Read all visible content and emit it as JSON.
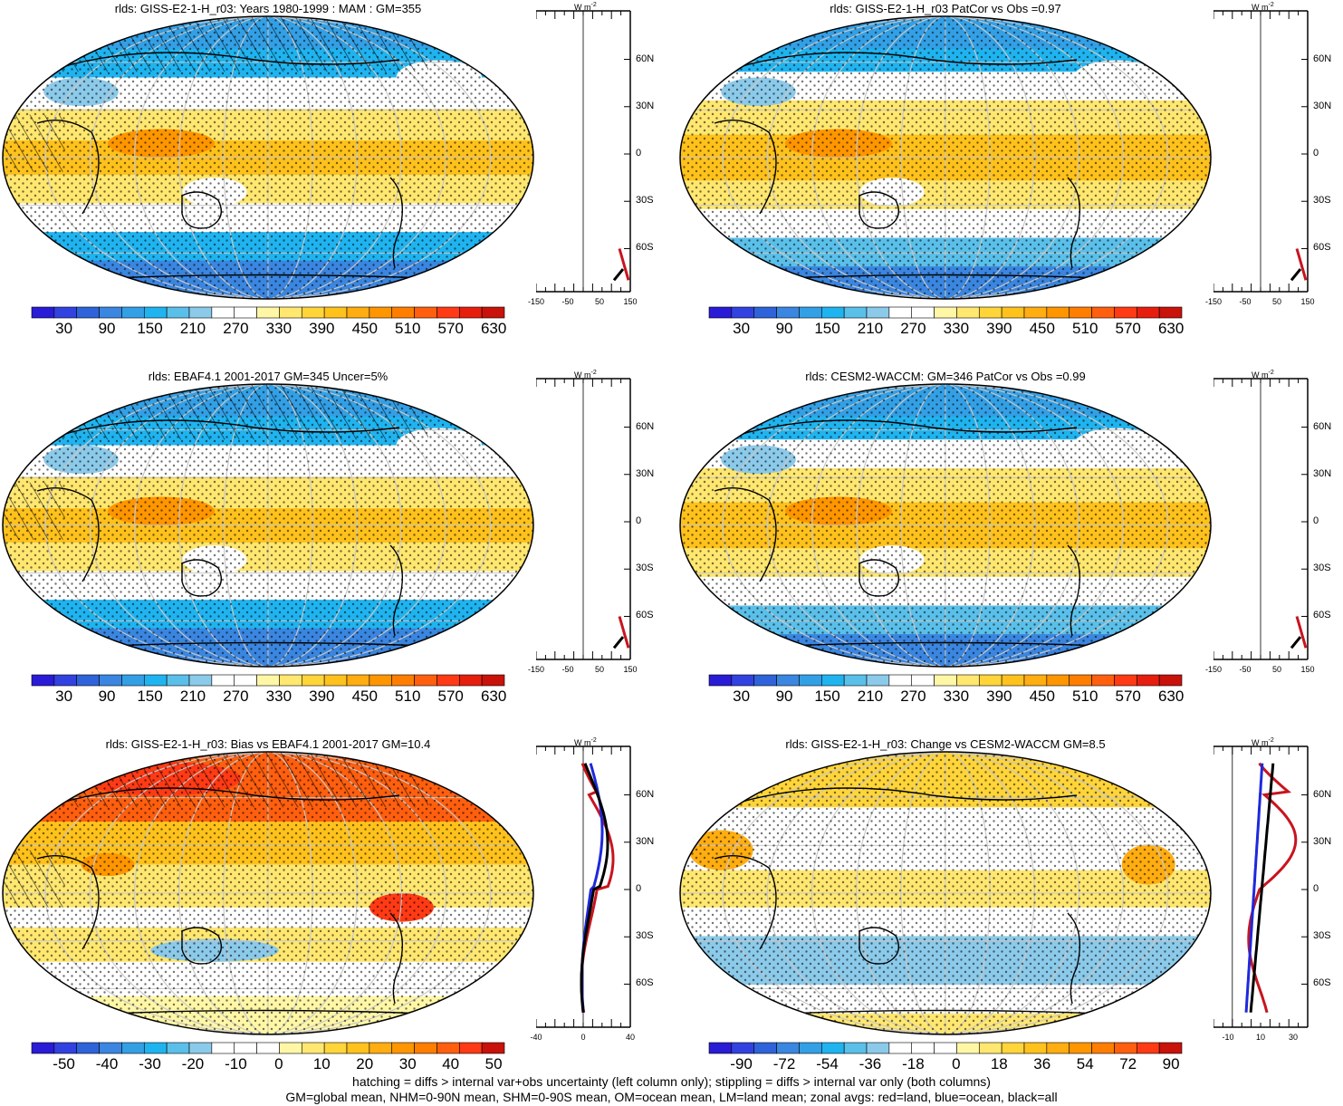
{
  "panels": [
    {
      "title": "rlds: GISS-E2-1-H_r03: Years 1980-1999 : MAM : GM=355",
      "palette": "abs",
      "colorbar_labels": [
        "30",
        "90",
        "150",
        "210",
        "270",
        "330",
        "390",
        "450",
        "510",
        "570",
        "630"
      ],
      "zonal_xticks": [
        "-150",
        "-50",
        "50",
        "150"
      ],
      "zonal_lines": "abs",
      "hatch": true
    },
    {
      "title": "rlds: GISS-E2-1-H_r03 PatCor vs Obs =0.97",
      "palette": "abs",
      "colorbar_labels": [
        "30",
        "90",
        "150",
        "210",
        "270",
        "330",
        "390",
        "450",
        "510",
        "570",
        "630"
      ],
      "zonal_xticks": [
        "-150",
        "-50",
        "50",
        "150"
      ],
      "zonal_lines": "abs",
      "hatch": false
    },
    {
      "title": "rlds: EBAF4.1 2001-2017 GM=345 Uncer=5%",
      "palette": "abs",
      "colorbar_labels": [
        "30",
        "90",
        "150",
        "210",
        "270",
        "330",
        "390",
        "450",
        "510",
        "570",
        "630"
      ],
      "zonal_xticks": [
        "-150",
        "-50",
        "50",
        "150"
      ],
      "zonal_lines": "abs",
      "hatch": true
    },
    {
      "title": "rlds: CESM2-WACCM: GM=346 PatCor vs Obs =0.99",
      "palette": "abs",
      "colorbar_labels": [
        "30",
        "90",
        "150",
        "210",
        "270",
        "330",
        "390",
        "450",
        "510",
        "570",
        "630"
      ],
      "zonal_xticks": [
        "-150",
        "-50",
        "50",
        "150"
      ],
      "zonal_lines": "abs",
      "hatch": false
    },
    {
      "title": "rlds: GISS-E2-1-H_r03: Bias vs EBAF4.1 2001-2017 GM=10.4",
      "palette": "diff",
      "colorbar_labels": [
        "-50",
        "-40",
        "-30",
        "-20",
        "-10",
        "0",
        "10",
        "20",
        "30",
        "40",
        "50"
      ],
      "zonal_xticks": [
        "-40",
        "0",
        "40"
      ],
      "zonal_lines": "bias",
      "hatch": true
    },
    {
      "title": "rlds: GISS-E2-1-H_r03: Change vs CESM2-WACCM GM=8.5",
      "palette": "diff",
      "colorbar_labels": [
        "-90",
        "-72",
        "-54",
        "-36",
        "-18",
        "0",
        "18",
        "36",
        "54",
        "72",
        "90"
      ],
      "zonal_xticks": [
        "-10",
        "10",
        "30"
      ],
      "zonal_lines": "change",
      "hatch": false
    }
  ],
  "zonal_ylabels": [
    "60N",
    "30N",
    "0",
    "30S",
    "60S"
  ],
  "zonal_unit": "W m",
  "zonal_unit_sup": "-2",
  "colors": {
    "palette_abs": [
      "#2a1bd6",
      "#3242e0",
      "#2f63d9",
      "#3a86e0",
      "#33a0e6",
      "#1fb4f0",
      "#5ac0ea",
      "#8ccaea",
      "#ffffff",
      "#ffffff",
      "#fff7a6",
      "#ffe770",
      "#ffd53a",
      "#ffc21c",
      "#ffad10",
      "#ff9600",
      "#ff7e00",
      "#ff5f0e",
      "#ff3a14",
      "#e61e0e",
      "#c8120a"
    ],
    "land_line": "#c8141e",
    "ocean_line": "#1e28dc",
    "all_line": "#000000"
  },
  "chart_data": [
    {
      "type": "heatmap",
      "title": "rlds: GISS-E2-1-H_r03: Years 1980-1999 : MAM : GM=355",
      "colorbar": [
        30,
        630
      ]
    },
    {
      "type": "heatmap",
      "title": "rlds: GISS-E2-1-H_r03 PatCor vs Obs =0.97",
      "colorbar": [
        30,
        630
      ]
    },
    {
      "type": "heatmap",
      "title": "rlds: EBAF4.1 2001-2017 GM=345 Uncer=5%",
      "colorbar": [
        30,
        630
      ]
    },
    {
      "type": "heatmap",
      "title": "rlds: CESM2-WACCM: GM=346 PatCor vs Obs =0.99",
      "colorbar": [
        30,
        630
      ]
    },
    {
      "type": "heatmap",
      "title": "rlds: GISS-E2-1-H_r03: Bias vs EBAF4.1 2001-2017 GM=10.4",
      "colorbar": [
        -50,
        50
      ]
    },
    {
      "type": "heatmap",
      "title": "rlds: GISS-E2-1-H_r03: Change vs CESM2-WACCM GM=8.5",
      "colorbar": [
        -90,
        90
      ]
    }
  ],
  "footer": {
    "line1": "hatching = diffs > internal var+obs uncertainty (left column only); stippling = diffs > internal var only (both columns)",
    "line2": "GM=global mean, NHM=0-90N mean, SHM=0-90S mean, OM=ocean mean, LM=land mean; zonal avgs: red=land, blue=ocean, black=all"
  }
}
